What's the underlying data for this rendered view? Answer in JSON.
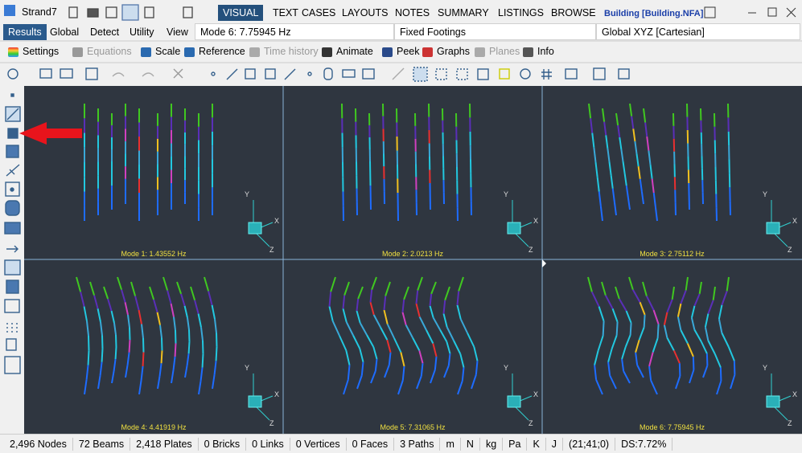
{
  "app": {
    "name": "Strand7",
    "file": "Building [Building.NFA]"
  },
  "menu_tabs": [
    "VISUAL",
    "TEXT",
    "CASES",
    "LAYOUTS",
    "NOTES",
    "SUMMARY",
    "LISTINGS",
    "BROWSE"
  ],
  "sub_tabs": [
    "Results",
    "Global",
    "Detect",
    "Utility",
    "View"
  ],
  "selectors": {
    "mode": "Mode 6: 7.75945 Hz",
    "freedom": "Fixed Footings",
    "ucs": "Global XYZ [Cartesian]"
  },
  "results_toolbar": [
    "Settings",
    "Equations",
    "Scale",
    "Reference",
    "Time history",
    "Animate",
    "Peek",
    "Graphs",
    "Planes",
    "Info"
  ],
  "viewports": [
    {
      "label": "Mode 1: 1.43552 Hz"
    },
    {
      "label": "Mode 2: 2.0213 Hz"
    },
    {
      "label": "Mode 3: 2.75112 Hz"
    },
    {
      "label": "Mode 4: 4.41919 Hz"
    },
    {
      "label": "Mode 5: 7.31065 Hz"
    },
    {
      "label": "Mode 6: 7.75945 Hz"
    }
  ],
  "triad": {
    "x": "X",
    "y": "Y",
    "z": "Z"
  },
  "status_bar": [
    "2,496 Nodes",
    "72 Beams",
    "2,418 Plates",
    "0 Bricks",
    "0 Links",
    "0 Vertices",
    "0 Faces",
    "3 Paths",
    "m",
    "N",
    "kg",
    "Pa",
    "K",
    "J",
    "(21;41;0)",
    "DS:7.72%"
  ]
}
